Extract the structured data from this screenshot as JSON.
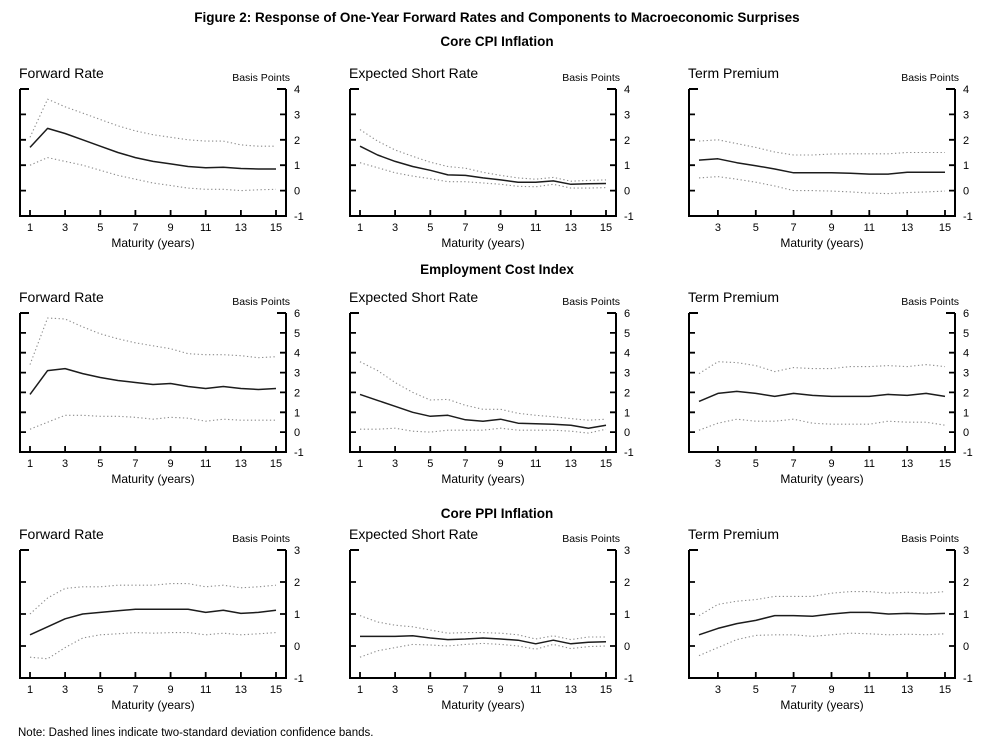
{
  "figure": {
    "title": "Figure 2: Response of One-Year Forward Rates and Components to Macroeconomic Surprises",
    "note": "Note: Dashed lines indicate two-standard deviation confidence bands.",
    "x_axis_label": "Maturity (years)",
    "units_label": "Basis Points",
    "line_color": "#1c1c1c",
    "band_color": "#8c8c8c"
  },
  "chart_data": [
    {
      "type": "line",
      "section": "Core CPI Inflation",
      "title": "Forward Rate",
      "units": "Basis Points",
      "xlabel": "Maturity (years)",
      "x_start": 1,
      "x_end": 15,
      "xticks": [
        1,
        3,
        5,
        7,
        9,
        11,
        13,
        15
      ],
      "ylim": [
        -1,
        4
      ],
      "series": [
        {
          "name": "point estimate",
          "style": "solid",
          "values": [
            1.7,
            2.45,
            2.25,
            2.0,
            1.75,
            1.5,
            1.3,
            1.15,
            1.05,
            0.95,
            0.9,
            0.92,
            0.87,
            0.85,
            0.85
          ]
        },
        {
          "name": "upper confidence band",
          "style": "dotted",
          "values": [
            2.1,
            3.6,
            3.3,
            3.05,
            2.8,
            2.55,
            2.35,
            2.2,
            2.1,
            2.0,
            1.95,
            1.95,
            1.8,
            1.75,
            1.75
          ]
        },
        {
          "name": "lower confidence band",
          "style": "dotted",
          "values": [
            1.0,
            1.3,
            1.15,
            1.0,
            0.8,
            0.6,
            0.45,
            0.3,
            0.2,
            0.1,
            0.05,
            0.05,
            0.0,
            0.03,
            0.05
          ]
        }
      ]
    },
    {
      "type": "line",
      "section": "Core CPI Inflation",
      "title": "Expected Short Rate",
      "units": "Basis Points",
      "xlabel": "Maturity (years)",
      "x_start": 1,
      "x_end": 15,
      "xticks": [
        1,
        3,
        5,
        7,
        9,
        11,
        13,
        15
      ],
      "ylim": [
        -1,
        4
      ],
      "series": [
        {
          "name": "point estimate",
          "style": "solid",
          "values": [
            1.75,
            1.4,
            1.15,
            0.95,
            0.8,
            0.62,
            0.6,
            0.5,
            0.42,
            0.33,
            0.33,
            0.38,
            0.25,
            0.27,
            0.28
          ]
        },
        {
          "name": "upper confidence band",
          "style": "dotted",
          "values": [
            2.4,
            1.95,
            1.6,
            1.35,
            1.12,
            0.95,
            0.88,
            0.72,
            0.6,
            0.5,
            0.45,
            0.52,
            0.37,
            0.4,
            0.42
          ]
        },
        {
          "name": "lower confidence band",
          "style": "dotted",
          "values": [
            1.1,
            0.9,
            0.7,
            0.57,
            0.47,
            0.35,
            0.35,
            0.3,
            0.25,
            0.17,
            0.15,
            0.25,
            0.1,
            0.1,
            0.12
          ]
        }
      ]
    },
    {
      "type": "line",
      "section": "Core CPI Inflation",
      "title": "Term Premium",
      "units": "Basis Points",
      "xlabel": "Maturity (years)",
      "x_start": 2,
      "x_end": 15,
      "xticks": [
        3,
        5,
        7,
        9,
        11,
        13,
        15
      ],
      "ylim": [
        -1,
        4
      ],
      "series": [
        {
          "name": "point estimate",
          "style": "solid",
          "values": [
            1.2,
            1.25,
            1.1,
            0.98,
            0.85,
            0.7,
            0.7,
            0.7,
            0.68,
            0.65,
            0.65,
            0.72,
            0.72,
            0.72
          ]
        },
        {
          "name": "upper confidence band",
          "style": "dotted",
          "values": [
            1.95,
            2.0,
            1.85,
            1.7,
            1.52,
            1.4,
            1.4,
            1.44,
            1.45,
            1.45,
            1.45,
            1.5,
            1.5,
            1.5
          ]
        },
        {
          "name": "lower confidence band",
          "style": "dotted",
          "values": [
            0.5,
            0.55,
            0.45,
            0.33,
            0.18,
            0.0,
            0.0,
            -0.02,
            -0.05,
            -0.1,
            -0.12,
            -0.08,
            -0.05,
            -0.02
          ]
        }
      ]
    },
    {
      "type": "line",
      "section": "Employment Cost Index",
      "title": "Forward Rate",
      "units": "Basis Points",
      "xlabel": "Maturity (years)",
      "x_start": 1,
      "x_end": 15,
      "xticks": [
        1,
        3,
        5,
        7,
        9,
        11,
        13,
        15
      ],
      "ylim": [
        -1,
        6
      ],
      "series": [
        {
          "name": "point estimate",
          "style": "solid",
          "values": [
            1.9,
            3.1,
            3.2,
            2.95,
            2.75,
            2.6,
            2.5,
            2.4,
            2.45,
            2.3,
            2.2,
            2.3,
            2.2,
            2.15,
            2.2
          ]
        },
        {
          "name": "upper confidence band",
          "style": "dotted",
          "values": [
            3.4,
            5.75,
            5.7,
            5.3,
            4.95,
            4.7,
            4.5,
            4.35,
            4.2,
            3.95,
            3.9,
            3.9,
            3.85,
            3.75,
            3.8
          ]
        },
        {
          "name": "lower confidence band",
          "style": "dotted",
          "values": [
            0.15,
            0.5,
            0.85,
            0.85,
            0.8,
            0.8,
            0.75,
            0.65,
            0.75,
            0.7,
            0.55,
            0.65,
            0.6,
            0.6,
            0.6
          ]
        }
      ]
    },
    {
      "type": "line",
      "section": "Employment Cost Index",
      "title": "Expected Short Rate",
      "units": "Basis Points",
      "xlabel": "Maturity (years)",
      "x_start": 1,
      "x_end": 15,
      "xticks": [
        1,
        3,
        5,
        7,
        9,
        11,
        13,
        15
      ],
      "ylim": [
        -1,
        6
      ],
      "series": [
        {
          "name": "point estimate",
          "style": "solid",
          "values": [
            1.9,
            1.6,
            1.3,
            1.0,
            0.8,
            0.85,
            0.62,
            0.55,
            0.65,
            0.45,
            0.42,
            0.4,
            0.35,
            0.2,
            0.35
          ]
        },
        {
          "name": "upper confidence band",
          "style": "dotted",
          "values": [
            3.55,
            3.1,
            2.5,
            2.0,
            1.62,
            1.65,
            1.35,
            1.15,
            1.15,
            0.95,
            0.85,
            0.78,
            0.68,
            0.6,
            0.65
          ]
        },
        {
          "name": "lower confidence band",
          "style": "dotted",
          "values": [
            0.15,
            0.15,
            0.2,
            0.05,
            0.0,
            0.1,
            0.1,
            0.1,
            0.2,
            0.1,
            0.1,
            0.1,
            0.05,
            -0.05,
            0.15
          ]
        }
      ]
    },
    {
      "type": "line",
      "section": "Employment Cost Index",
      "title": "Term Premium",
      "units": "Basis Points",
      "xlabel": "Maturity (years)",
      "x_start": 2,
      "x_end": 15,
      "xticks": [
        3,
        5,
        7,
        9,
        11,
        13,
        15
      ],
      "ylim": [
        -1,
        6
      ],
      "series": [
        {
          "name": "point estimate",
          "style": "solid",
          "values": [
            1.55,
            1.95,
            2.05,
            1.95,
            1.8,
            1.95,
            1.85,
            1.8,
            1.8,
            1.8,
            1.9,
            1.85,
            1.95,
            1.8
          ]
        },
        {
          "name": "upper confidence band",
          "style": "dotted",
          "values": [
            2.95,
            3.55,
            3.5,
            3.35,
            3.05,
            3.25,
            3.2,
            3.2,
            3.3,
            3.3,
            3.35,
            3.3,
            3.4,
            3.3
          ]
        },
        {
          "name": "lower confidence band",
          "style": "dotted",
          "values": [
            0.1,
            0.45,
            0.65,
            0.55,
            0.55,
            0.65,
            0.45,
            0.4,
            0.4,
            0.4,
            0.55,
            0.5,
            0.5,
            0.35
          ]
        }
      ]
    },
    {
      "type": "line",
      "section": "Core PPI Inflation",
      "title": "Forward Rate",
      "units": "Basis Points",
      "xlabel": "Maturity (years)",
      "x_start": 1,
      "x_end": 15,
      "xticks": [
        1,
        3,
        5,
        7,
        9,
        11,
        13,
        15
      ],
      "ylim": [
        -1,
        3
      ],
      "series": [
        {
          "name": "point estimate",
          "style": "solid",
          "values": [
            0.35,
            0.6,
            0.85,
            1.0,
            1.05,
            1.1,
            1.15,
            1.15,
            1.15,
            1.15,
            1.05,
            1.12,
            1.02,
            1.05,
            1.12
          ]
        },
        {
          "name": "upper confidence band",
          "style": "dotted",
          "values": [
            1.0,
            1.5,
            1.8,
            1.85,
            1.85,
            1.9,
            1.9,
            1.9,
            1.95,
            1.95,
            1.85,
            1.9,
            1.82,
            1.85,
            1.9
          ]
        },
        {
          "name": "lower confidence band",
          "style": "dotted",
          "values": [
            -0.35,
            -0.4,
            -0.05,
            0.25,
            0.35,
            0.38,
            0.42,
            0.4,
            0.42,
            0.42,
            0.35,
            0.4,
            0.35,
            0.38,
            0.42
          ]
        }
      ]
    },
    {
      "type": "line",
      "section": "Core PPI Inflation",
      "title": "Expected Short Rate",
      "units": "Basis Points",
      "xlabel": "Maturity (years)",
      "x_start": 1,
      "x_end": 15,
      "xticks": [
        1,
        3,
        5,
        7,
        9,
        11,
        13,
        15
      ],
      "ylim": [
        -1,
        3
      ],
      "series": [
        {
          "name": "point estimate",
          "style": "solid",
          "values": [
            0.3,
            0.3,
            0.3,
            0.32,
            0.25,
            0.2,
            0.22,
            0.25,
            0.22,
            0.18,
            0.07,
            0.18,
            0.07,
            0.12,
            0.13
          ]
        },
        {
          "name": "upper confidence band",
          "style": "dotted",
          "values": [
            0.95,
            0.75,
            0.65,
            0.6,
            0.5,
            0.4,
            0.42,
            0.42,
            0.4,
            0.35,
            0.22,
            0.32,
            0.2,
            0.28,
            0.28
          ]
        },
        {
          "name": "lower confidence band",
          "style": "dotted",
          "values": [
            -0.35,
            -0.15,
            -0.05,
            0.05,
            0.03,
            0.0,
            0.05,
            0.08,
            0.05,
            0.0,
            -0.1,
            0.05,
            -0.08,
            -0.02,
            0.0
          ]
        }
      ]
    },
    {
      "type": "line",
      "section": "Core PPI Inflation",
      "title": "Term Premium",
      "units": "Basis Points",
      "xlabel": "Maturity (years)",
      "x_start": 2,
      "x_end": 15,
      "xticks": [
        3,
        5,
        7,
        9,
        11,
        13,
        15
      ],
      "ylim": [
        -1,
        3
      ],
      "series": [
        {
          "name": "point estimate",
          "style": "solid",
          "values": [
            0.35,
            0.55,
            0.7,
            0.8,
            0.95,
            0.95,
            0.93,
            1.0,
            1.05,
            1.05,
            1.0,
            1.02,
            1.0,
            1.02
          ]
        },
        {
          "name": "upper confidence band",
          "style": "dotted",
          "values": [
            0.95,
            1.3,
            1.4,
            1.45,
            1.55,
            1.55,
            1.55,
            1.65,
            1.7,
            1.7,
            1.65,
            1.68,
            1.65,
            1.7
          ]
        },
        {
          "name": "lower confidence band",
          "style": "dotted",
          "values": [
            -0.3,
            -0.05,
            0.2,
            0.33,
            0.35,
            0.35,
            0.3,
            0.35,
            0.4,
            0.38,
            0.35,
            0.37,
            0.35,
            0.38
          ]
        }
      ]
    }
  ]
}
